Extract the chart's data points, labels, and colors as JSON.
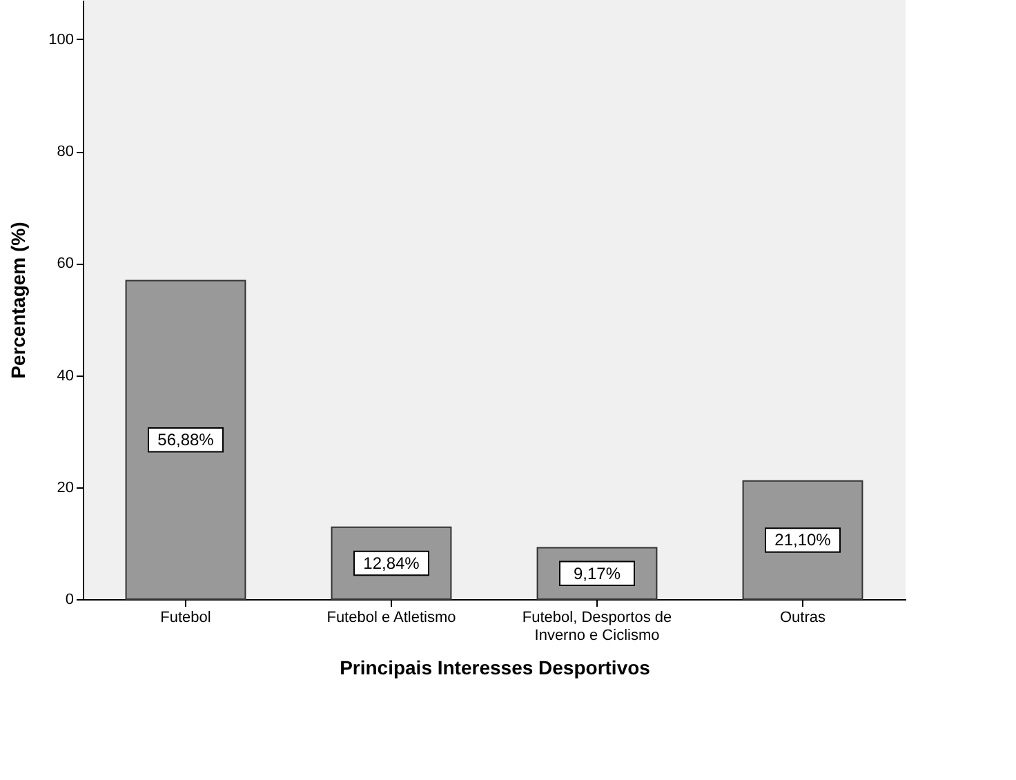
{
  "chart_data": {
    "type": "bar",
    "xlabel": "Principais Interesses Desportivos",
    "ylabel": "Percentagem (%)",
    "categories": [
      "Futebol",
      "Futebol e Atletismo",
      "Futebol, Desportos de Inverno e Ciclismo",
      "Outras"
    ],
    "values": [
      56.88,
      12.84,
      9.17,
      21.1
    ],
    "value_labels": [
      "56,88%",
      "12,84%",
      "9,17%",
      "21,10%"
    ],
    "color": "#999999",
    "ylim": [
      0,
      107
    ],
    "yticks": [
      0,
      20,
      40,
      60,
      80,
      100
    ],
    "grid": false
  }
}
